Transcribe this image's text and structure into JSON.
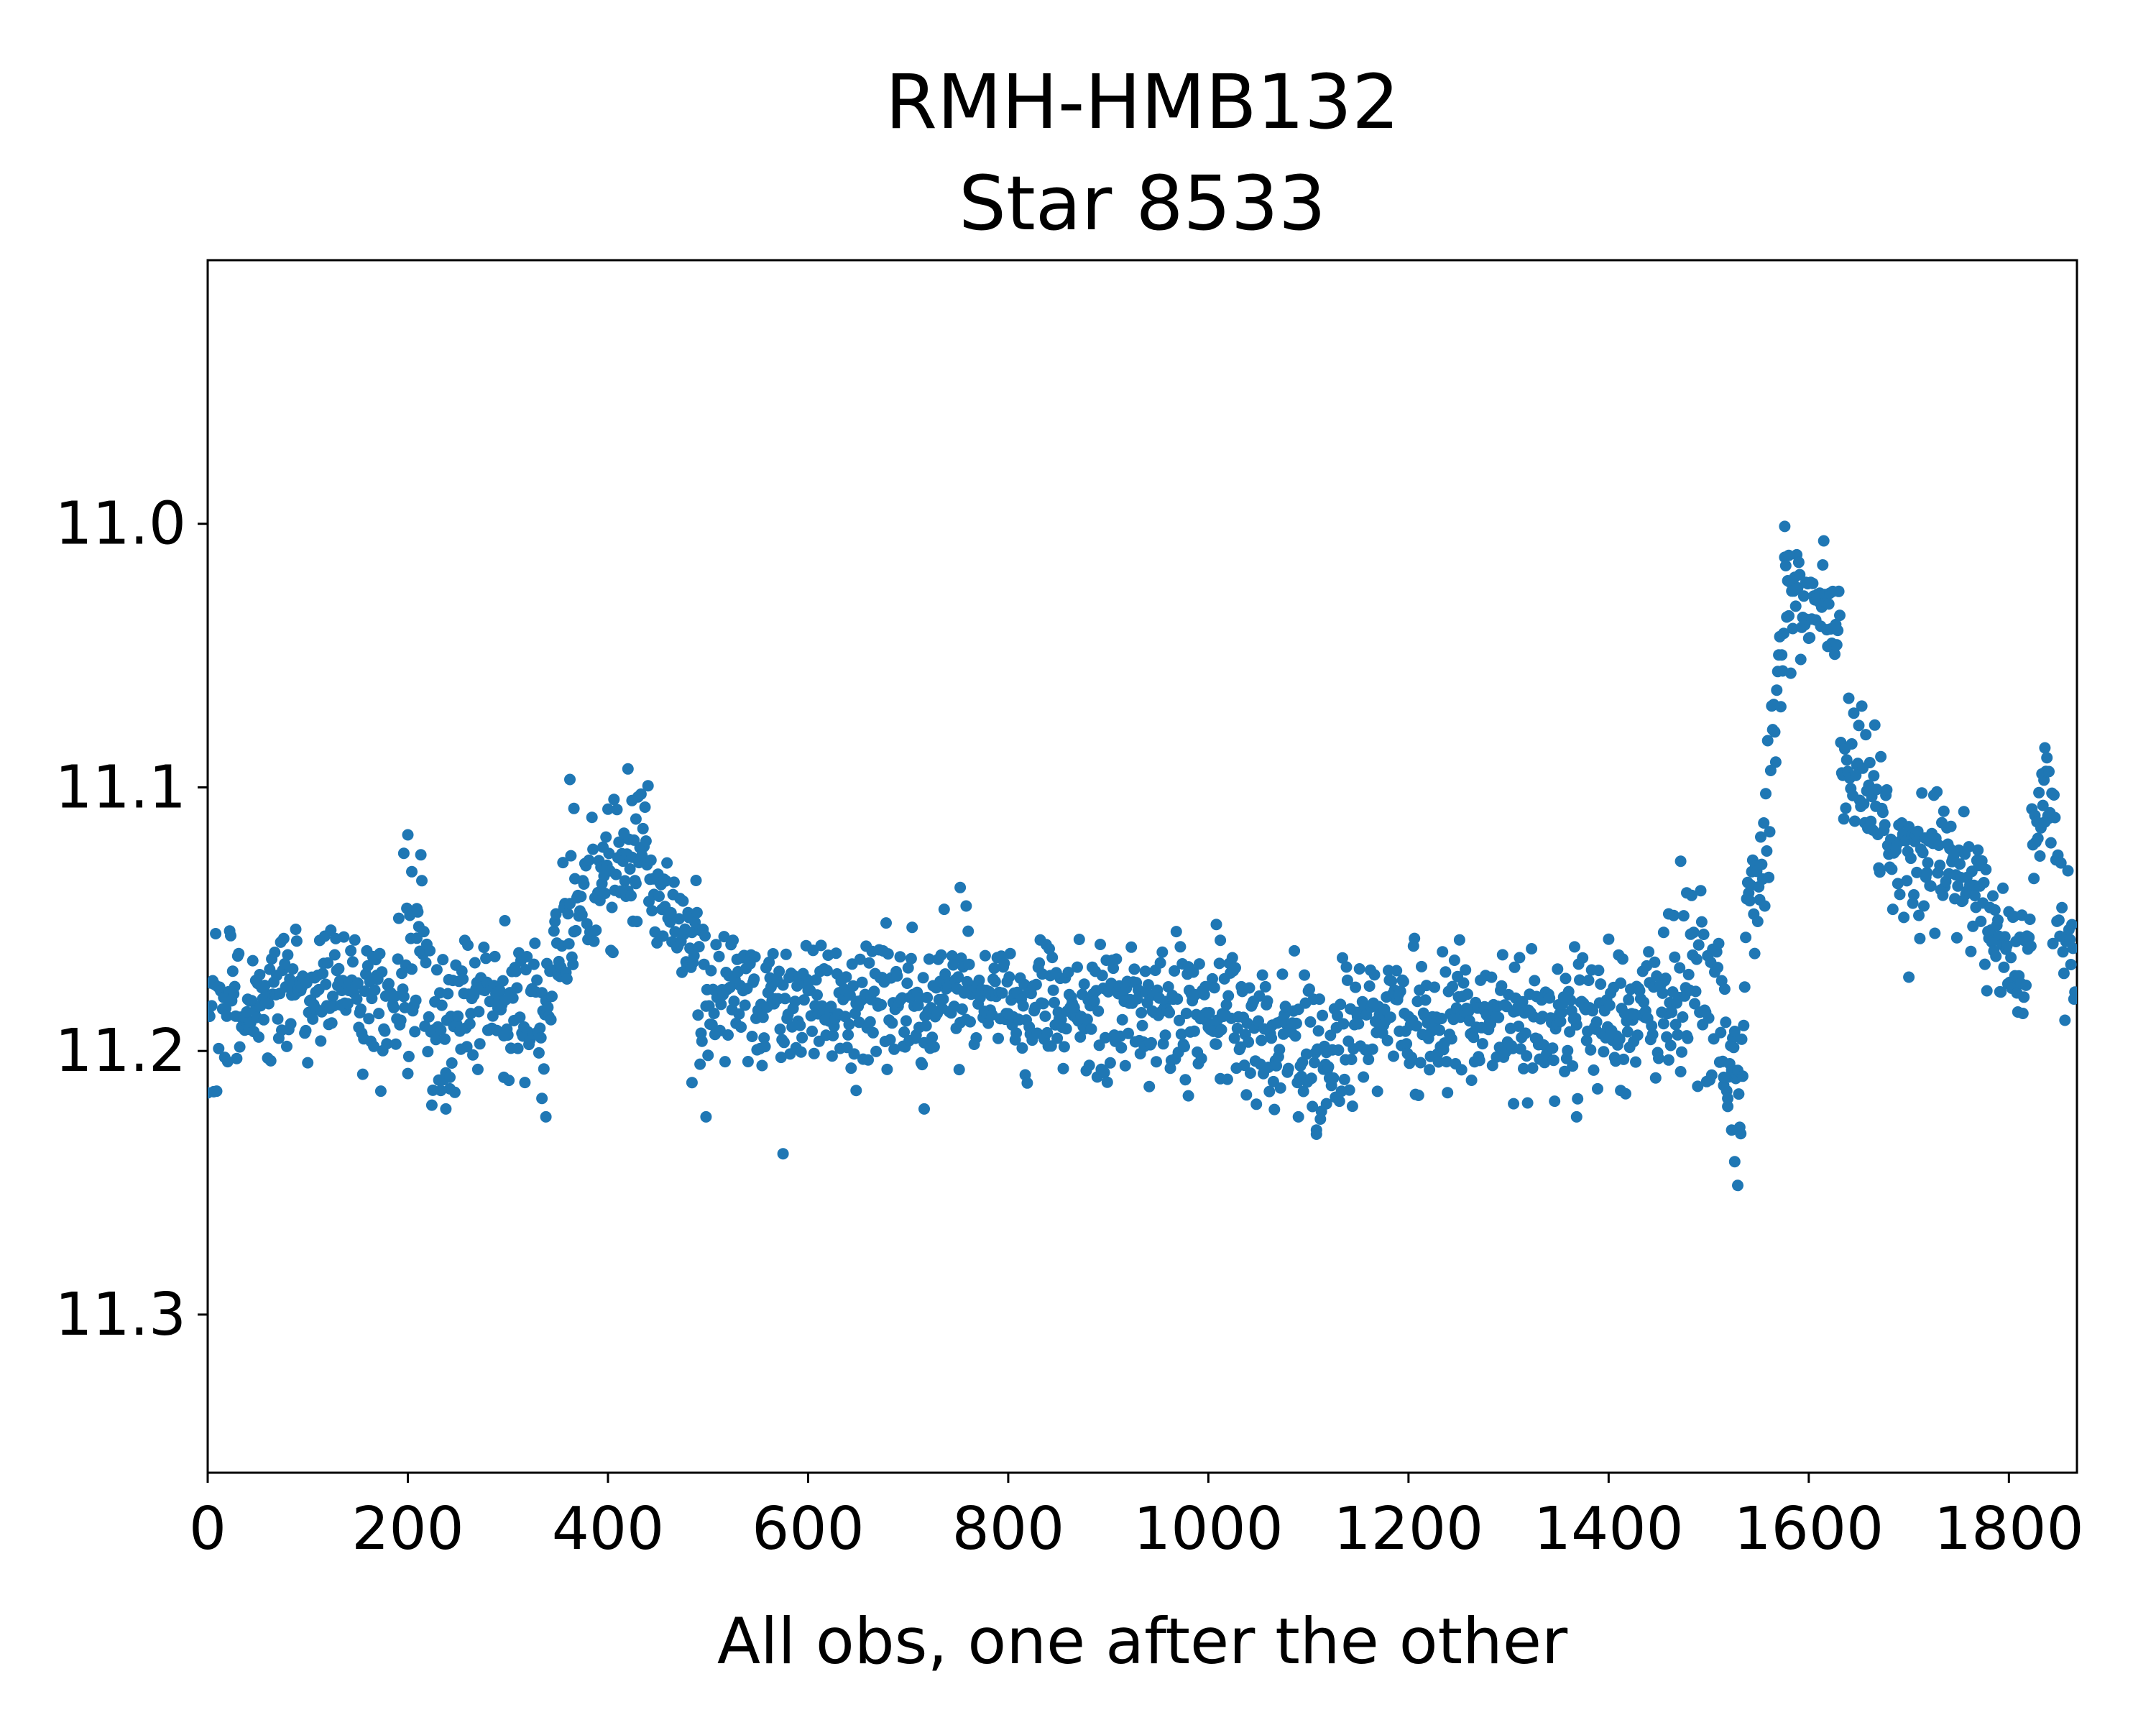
{
  "chart_data": {
    "type": "scatter",
    "title_line1": "RMH-HMB132",
    "title_line2": "Star 8533",
    "xlabel": "All obs, one after the other",
    "ylabel": "",
    "grid": false,
    "legend": null,
    "x_ticks": [
      0,
      200,
      400,
      600,
      800,
      1000,
      1200,
      1400,
      1600,
      1800
    ],
    "y_ticks": [
      11.0,
      11.1,
      11.2,
      11.3
    ],
    "y_tick_labels": [
      "11.0",
      "11.1",
      "11.2",
      "11.3"
    ],
    "xlim": [
      0,
      1868
    ],
    "ylim_top": 10.9,
    "ylim_bottom": 11.36,
    "y_axis_inverted": true,
    "axis_color": "#000000",
    "background_color": "#ffffff",
    "marker": {
      "shape": "circle",
      "color": "#1f77b4",
      "radius_px": 8
    },
    "n_points": 1868,
    "seed": 8533,
    "series_description": "Stellar light curve, one magnitude measurement per observation: noisy baseline near mag 11.18; mild brightening to ~11.13 over obs 342-472; long plateau ~11.18-11.19 with faint excursions to ~11.22; faint fading streak to ~11.25 at obs 1512-1536; rapid outburst rise peaking at mag 11.00 near obs 1576 and staying ~11.03 until obs 1632; stepped decline through ~11.10 and ~11.14; brief re-brightening to ~11.09 near obs 1822-1842; final fade toward ~11.18 at obs 1868.",
    "mean_curve_segments": [
      [
        0,
        80,
        11.186,
        11.18,
        0.013
      ],
      [
        80,
        150,
        11.178,
        11.174,
        0.012
      ],
      [
        150,
        190,
        11.179,
        11.186,
        0.014
      ],
      [
        190,
        215,
        11.172,
        11.162,
        0.018
      ],
      [
        215,
        252,
        11.186,
        11.192,
        0.015
      ],
      [
        252,
        300,
        11.181,
        11.178,
        0.012
      ],
      [
        300,
        342,
        11.186,
        11.192,
        0.014
      ],
      [
        342,
        368,
        11.172,
        11.143,
        0.013
      ],
      [
        368,
        405,
        11.139,
        11.134,
        0.012
      ],
      [
        405,
        442,
        11.134,
        11.129,
        0.013
      ],
      [
        442,
        472,
        11.133,
        11.15,
        0.013
      ],
      [
        472,
        512,
        11.156,
        11.176,
        0.014
      ],
      [
        512,
        565,
        11.176,
        11.181,
        0.012
      ],
      [
        565,
        645,
        11.181,
        11.183,
        0.013
      ],
      [
        645,
        745,
        11.183,
        11.178,
        0.014
      ],
      [
        745,
        825,
        11.179,
        11.185,
        0.012
      ],
      [
        825,
        925,
        11.185,
        11.184,
        0.012
      ],
      [
        925,
        1005,
        11.183,
        11.186,
        0.013
      ],
      [
        1005,
        1065,
        11.186,
        11.192,
        0.013
      ],
      [
        1065,
        1145,
        11.196,
        11.198,
        0.015
      ],
      [
        1145,
        1225,
        11.191,
        11.186,
        0.013
      ],
      [
        1225,
        1325,
        11.187,
        11.19,
        0.013
      ],
      [
        1325,
        1425,
        11.19,
        11.186,
        0.013
      ],
      [
        1425,
        1482,
        11.185,
        11.179,
        0.014
      ],
      [
        1482,
        1512,
        11.178,
        11.172,
        0.016
      ],
      [
        1512,
        1536,
        11.19,
        11.225,
        0.018
      ],
      [
        1536,
        1562,
        11.148,
        11.108,
        0.014
      ],
      [
        1562,
        1576,
        11.085,
        11.042,
        0.012
      ],
      [
        1576,
        1602,
        11.03,
        11.026,
        0.012
      ],
      [
        1602,
        1632,
        11.028,
        11.042,
        0.012
      ],
      [
        1632,
        1667,
        11.086,
        11.102,
        0.012
      ],
      [
        1667,
        1707,
        11.11,
        11.136,
        0.013
      ],
      [
        1707,
        1747,
        11.131,
        11.121,
        0.013
      ],
      [
        1747,
        1787,
        11.131,
        11.152,
        0.013
      ],
      [
        1787,
        1822,
        11.156,
        11.166,
        0.013
      ],
      [
        1822,
        1842,
        11.128,
        11.098,
        0.014
      ],
      [
        1842,
        1868,
        11.128,
        11.176,
        0.015
      ]
    ],
    "outlier_points": [
      [
        196,
        11.125
      ],
      [
        200,
        11.118
      ],
      [
        204,
        11.132
      ],
      [
        209,
        11.146
      ],
      [
        233,
        11.215
      ],
      [
        238,
        11.222
      ],
      [
        242,
        11.21
      ],
      [
        296,
        11.21
      ],
      [
        334,
        11.218
      ],
      [
        338,
        11.225
      ],
      [
        362,
        11.097
      ],
      [
        366,
        11.108
      ],
      [
        420,
        11.093
      ],
      [
        424,
        11.105
      ],
      [
        428,
        11.112
      ],
      [
        484,
        11.212
      ],
      [
        492,
        11.205
      ],
      [
        498,
        11.225
      ],
      [
        575,
        11.239
      ],
      [
        648,
        11.215
      ],
      [
        716,
        11.222
      ],
      [
        752,
        11.138
      ],
      [
        758,
        11.145
      ],
      [
        980,
        11.217
      ],
      [
        1008,
        11.152
      ],
      [
        1012,
        11.158
      ],
      [
        1090,
        11.225
      ],
      [
        1108,
        11.23
      ],
      [
        1118,
        11.22
      ],
      [
        1305,
        11.22
      ],
      [
        1368,
        11.225
      ],
      [
        1412,
        11.215
      ],
      [
        1455,
        11.155
      ],
      [
        1460,
        11.148
      ],
      [
        1472,
        11.128
      ],
      [
        1478,
        11.14
      ],
      [
        1515,
        11.21
      ],
      [
        1519,
        11.218
      ],
      [
        1523,
        11.23
      ],
      [
        1526,
        11.242
      ],
      [
        1529,
        11.251
      ],
      [
        1576,
        11.001
      ],
      [
        1580,
        11.012
      ],
      [
        1700,
        11.172
      ],
      [
        1836,
        11.085
      ],
      [
        1840,
        11.094
      ]
    ]
  }
}
